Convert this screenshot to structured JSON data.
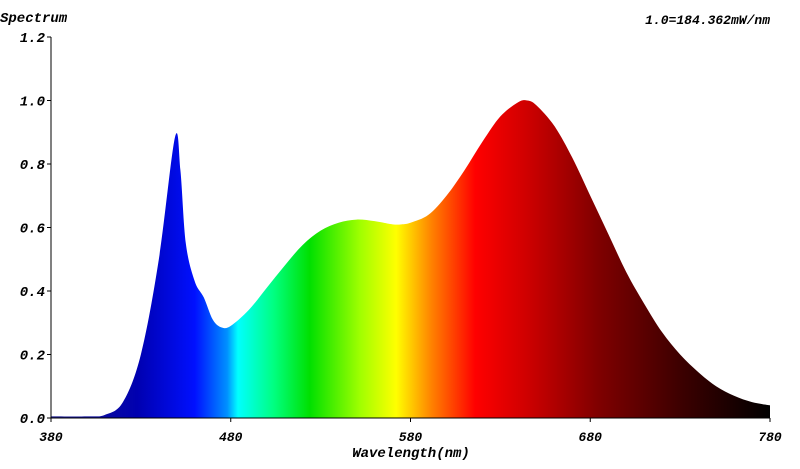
{
  "chart_data": {
    "type": "area",
    "title": "Spectrum",
    "annotation": "1.0=184.362mW/nm",
    "xlabel": "Wavelength(nm)",
    "ylabel": "",
    "xlim": [
      380,
      780
    ],
    "ylim": [
      0,
      1.2
    ],
    "x_ticks": [
      "380",
      "480",
      "580",
      "680",
      "780"
    ],
    "y_ticks": [
      "0.0",
      "0.2",
      "0.4",
      "0.6",
      "0.8",
      "1.0",
      "1.2"
    ],
    "grid": false,
    "fill": "wavelength-colored spectrum gradient",
    "x": [
      380,
      400,
      410,
      420,
      430,
      440,
      449,
      452,
      455,
      460,
      465,
      470,
      475,
      480,
      490,
      500,
      510,
      520,
      530,
      540,
      550,
      560,
      570,
      575,
      580,
      590,
      600,
      610,
      620,
      630,
      640,
      645,
      650,
      660,
      670,
      680,
      690,
      700,
      710,
      720,
      730,
      740,
      750,
      760,
      770,
      780
    ],
    "y": [
      0.005,
      0.005,
      0.01,
      0.05,
      0.2,
      0.5,
      0.885,
      0.78,
      0.55,
      0.43,
      0.38,
      0.31,
      0.285,
      0.29,
      0.34,
      0.41,
      0.48,
      0.545,
      0.59,
      0.615,
      0.625,
      0.62,
      0.61,
      0.61,
      0.615,
      0.64,
      0.7,
      0.78,
      0.87,
      0.95,
      0.995,
      1.0,
      0.985,
      0.92,
      0.82,
      0.7,
      0.58,
      0.46,
      0.36,
      0.27,
      0.2,
      0.145,
      0.1,
      0.07,
      0.05,
      0.04
    ]
  }
}
